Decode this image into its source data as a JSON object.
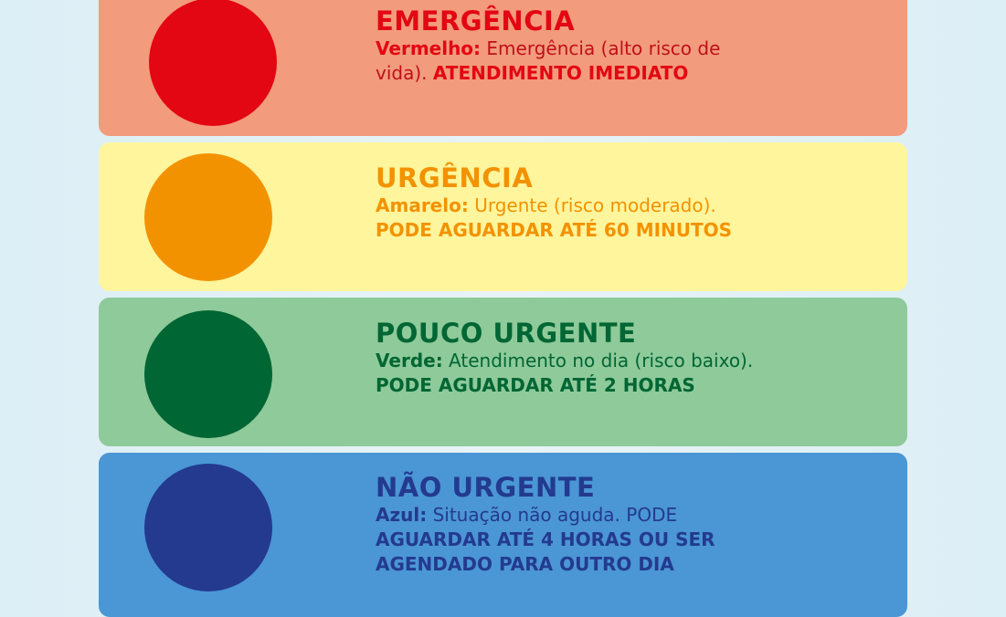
{
  "levels": [
    {
      "title": "EMERGÊNCIA",
      "color_label": "Vermelho:",
      "description": " Emergência (alto risco de vida). ",
      "action": "ATENDIMENTO IMEDIATO",
      "card_color": "#f29b7d",
      "circle_color": "#e30613",
      "text_color": "#e30613"
    },
    {
      "title": "URGÊNCIA",
      "color_label": "Amarelo:",
      "description": " Urgente (risco moderado). ",
      "action": "PODE AGUARDAR ATÉ 60 MINUTOS",
      "card_color": "#fff59d",
      "circle_color": "#f39200",
      "text_color": "#f39200"
    },
    {
      "title": "POUCO URGENTE",
      "color_label": "Verde:",
      "description": " Atendimento no dia (risco baixo). ",
      "action": "PODE AGUARDAR ATÉ 2 HORAS",
      "card_color": "#8fca9a",
      "circle_color": "#006633",
      "text_color": "#006633"
    },
    {
      "title": "NÃO URGENTE",
      "color_label": "Azul:",
      "description": " Situação não aguda. PODE ",
      "action": "AGUARDAR ATÉ 4 HORAS OU SER AGENDADO PARA OUTRO DIA",
      "card_color": "#4b96d4",
      "circle_color": "#233a8f",
      "text_color": "#233a8f"
    }
  ]
}
